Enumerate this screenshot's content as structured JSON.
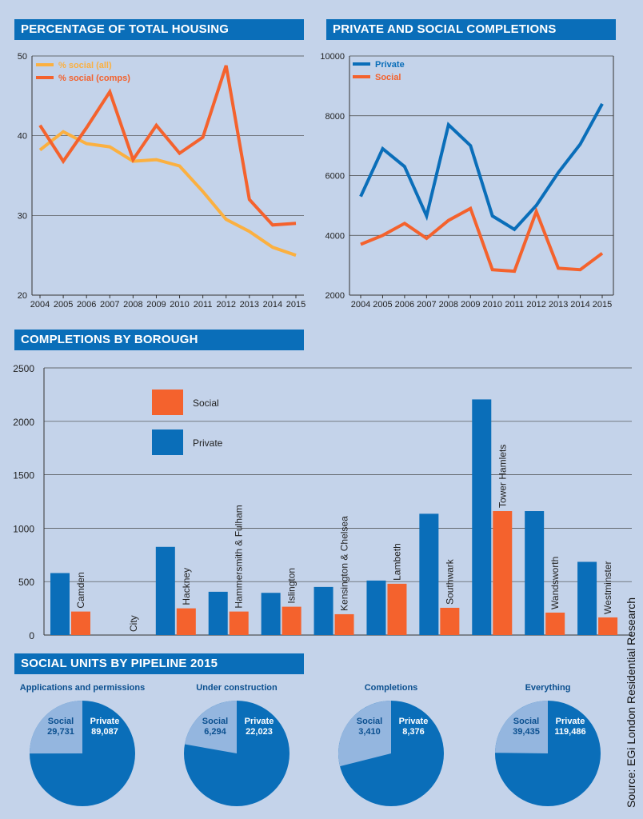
{
  "source": "Source: EGi London Residential Research",
  "colors": {
    "blue": "#0a6eb9",
    "orange": "#f4622d",
    "yellow": "#fbb040",
    "light_blue": "#94b6df",
    "grid": "#333333"
  },
  "chart_data": [
    {
      "id": "pct",
      "type": "line",
      "title": "PERCENTAGE OF TOTAL HOUSING",
      "x": [
        "2004",
        "2005",
        "2006",
        "2007",
        "2008",
        "2009",
        "2010",
        "2011",
        "2012",
        "2013",
        "2014",
        "2015"
      ],
      "ylim": [
        20,
        50
      ],
      "yticks": [
        "20",
        "30",
        "40",
        "50"
      ],
      "series": [
        {
          "name": "% social (all)",
          "color": "#fbb040",
          "values": [
            38.2,
            40.5,
            39.0,
            38.6,
            36.8,
            37.0,
            36.2,
            33.0,
            29.5,
            28.0,
            26.0,
            25.0
          ]
        },
        {
          "name": "% social (comps)",
          "color": "#f4622d",
          "values": [
            41.3,
            36.8,
            41.0,
            45.5,
            37.0,
            41.3,
            37.8,
            39.8,
            48.8,
            32.0,
            28.8,
            29.0
          ]
        }
      ]
    },
    {
      "id": "comp",
      "type": "line",
      "title": "PRIVATE AND SOCIAL COMPLETIONS",
      "x": [
        "2004",
        "2005",
        "2006",
        "2007",
        "2008",
        "2009",
        "2010",
        "2011",
        "2012",
        "2013",
        "2014",
        "2015"
      ],
      "ylim": [
        2000,
        10000
      ],
      "yticks": [
        "2000",
        "4000",
        "6000",
        "8000",
        "10000"
      ],
      "series": [
        {
          "name": "Private",
          "color": "#0a6eb9",
          "values": [
            5300,
            6900,
            6300,
            4650,
            7700,
            7000,
            4650,
            4200,
            5000,
            6100,
            7050,
            8400
          ]
        },
        {
          "name": "Social",
          "color": "#f4622d",
          "values": [
            3700,
            4000,
            4400,
            3900,
            4500,
            4900,
            2850,
            2800,
            4800,
            2900,
            2850,
            3400
          ]
        }
      ]
    },
    {
      "id": "borough",
      "type": "bar",
      "title": "COMPLETIONS BY BOROUGH",
      "categories": [
        "Camden",
        "City",
        "Hackney",
        "Hammersmith & Fulham",
        "Islington",
        "Kensington & Chelsea",
        "Lambeth",
        "Southwark",
        "Tower Hamlets",
        "Wandsworth",
        "Westminster"
      ],
      "ylim": [
        0,
        2500
      ],
      "yticks": [
        "0",
        "500",
        "1000",
        "1500",
        "2000",
        "2500"
      ],
      "series": [
        {
          "name": "Private",
          "color": "#0a6eb9",
          "values": [
            580,
            0,
            825,
            405,
            395,
            450,
            510,
            1135,
            2205,
            1160,
            685
          ]
        },
        {
          "name": "Social",
          "color": "#f4622d",
          "values": [
            220,
            0,
            250,
            220,
            265,
            195,
            480,
            255,
            1160,
            210,
            165
          ]
        }
      ],
      "legend": [
        {
          "name": "Social",
          "color": "#f4622d"
        },
        {
          "name": "Private",
          "color": "#0a6eb9"
        }
      ]
    },
    {
      "id": "pipeline",
      "type": "pie",
      "title": "SOCIAL UNITS BY PIPELINE 2015",
      "pies": [
        {
          "title": "Applications and permissions",
          "social_label": "Social",
          "social_value": "29,731",
          "private_label": "Private",
          "private_value": "89,087",
          "social": 29731,
          "private": 89087
        },
        {
          "title": "Under construction",
          "social_label": "Social",
          "social_value": "6,294",
          "private_label": "Private",
          "private_value": "22,023",
          "social": 6294,
          "private": 22023
        },
        {
          "title": "Completions",
          "social_label": "Social",
          "social_value": "3,410",
          "private_label": "Private",
          "private_value": "8,376",
          "social": 3410,
          "private": 8376
        },
        {
          "title": "Everything",
          "social_label": "Social",
          "social_value": "39,435",
          "private_label": "Private",
          "private_value": "119,486",
          "social": 39435,
          "private": 119486
        }
      ]
    }
  ]
}
